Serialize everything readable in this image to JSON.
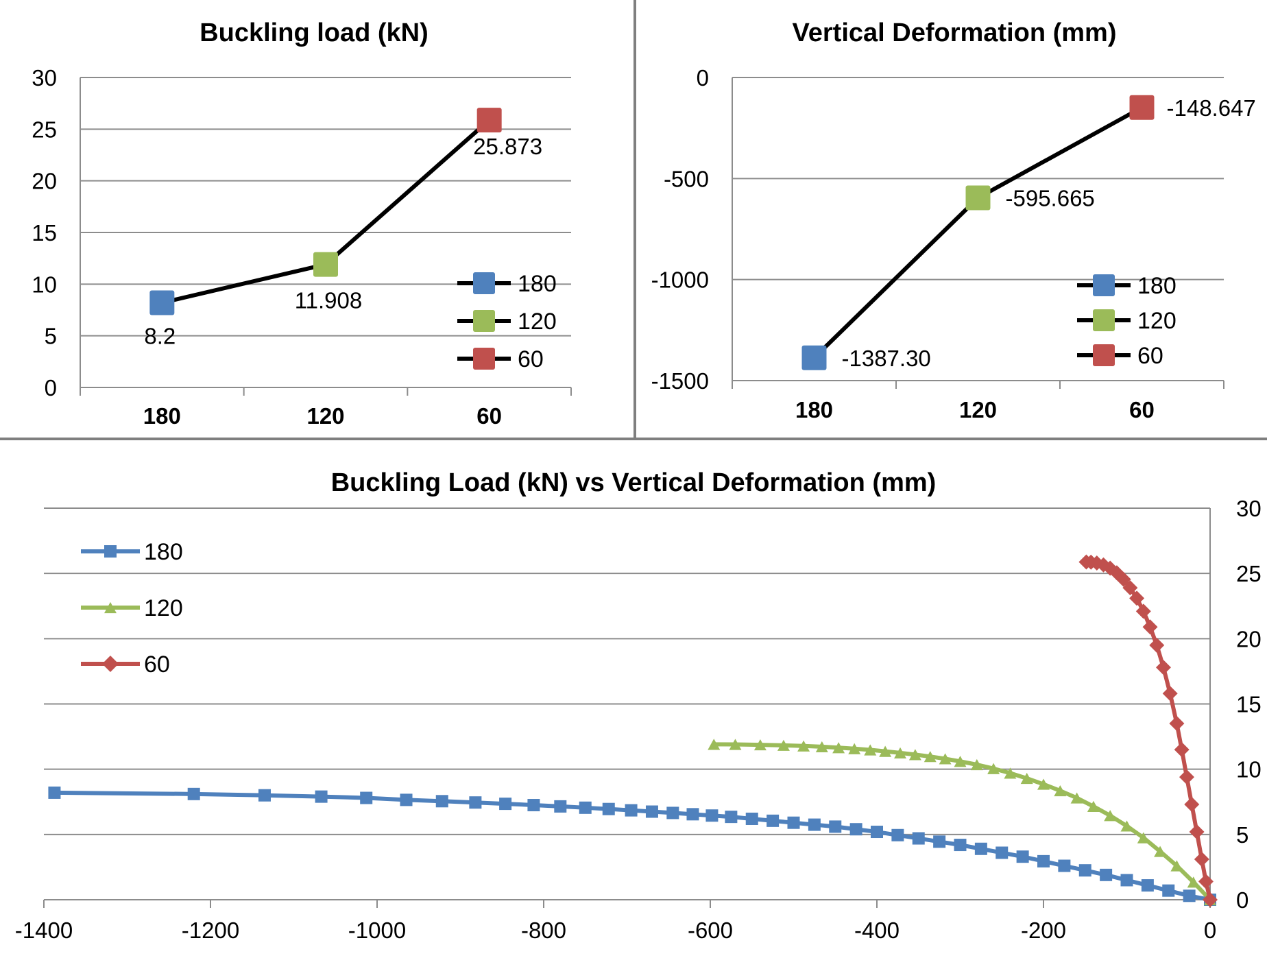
{
  "chart_data": [
    {
      "type": "line",
      "title": "Buckling load (kN)",
      "categories": [
        "180",
        "120",
        "60"
      ],
      "values": [
        8.2,
        11.908,
        25.873
      ],
      "data_labels": [
        "8.2",
        "11.908",
        "25.873"
      ],
      "point_colors": [
        "#4F81BD",
        "#9BBB59",
        "#C0504D"
      ],
      "ylim": [
        0,
        30
      ],
      "yticks": [
        "0",
        "5",
        "10",
        "15",
        "20",
        "25",
        "30"
      ],
      "legend": [
        "180",
        "120",
        "60"
      ],
      "legend_position": "bottom-right",
      "grid": true
    },
    {
      "type": "line",
      "title": "Vertical Deformation (mm)",
      "categories": [
        "180",
        "120",
        "60"
      ],
      "values": [
        -1387.3,
        -595.665,
        -148.647
      ],
      "data_labels": [
        "-1387.30",
        "-595.665",
        "-148.647"
      ],
      "point_colors": [
        "#4F81BD",
        "#9BBB59",
        "#C0504D"
      ],
      "ylim": [
        -1500,
        0
      ],
      "yticks": [
        "0",
        "-500",
        "-1000",
        "-1500"
      ],
      "legend": [
        "180",
        "120",
        "60"
      ],
      "legend_position": "bottom-right",
      "grid": true
    },
    {
      "type": "scatter",
      "title": "Buckling Load (kN) vs Vertical Deformation (mm)",
      "xlim": [
        -1400,
        0
      ],
      "ylim": [
        0,
        30
      ],
      "xticks": [
        "-1400",
        "-1200",
        "-1000",
        "-800",
        "-600",
        "-400",
        "-200",
        "0"
      ],
      "yticks": [
        "0",
        "5",
        "10",
        "15",
        "20",
        "25",
        "30"
      ],
      "y_axis_side": "right",
      "legend_position": "top-left",
      "grid": true,
      "series": [
        {
          "name": "180",
          "color": "#4F81BD",
          "marker": "square",
          "x": [
            -1387.3,
            -1220,
            -1135,
            -1067,
            -1013,
            -965,
            -922,
            -882,
            -846,
            -812,
            -780,
            -750,
            -722,
            -695,
            -670,
            -645,
            -621,
            -598,
            -575,
            -550,
            -525,
            -500,
            -475,
            -450,
            -425,
            -400,
            -375,
            -350,
            -325,
            -300,
            -275,
            -250,
            -225,
            -200,
            -175,
            -150,
            -125,
            -100,
            -75,
            -50,
            -25,
            0
          ],
          "y": [
            8.2,
            8.1,
            8.0,
            7.9,
            7.8,
            7.65,
            7.55,
            7.45,
            7.35,
            7.25,
            7.15,
            7.05,
            6.95,
            6.85,
            6.75,
            6.65,
            6.55,
            6.45,
            6.35,
            6.2,
            6.05,
            5.9,
            5.75,
            5.6,
            5.4,
            5.2,
            4.95,
            4.7,
            4.45,
            4.2,
            3.9,
            3.6,
            3.3,
            2.95,
            2.6,
            2.25,
            1.9,
            1.5,
            1.1,
            0.7,
            0.3,
            0
          ]
        },
        {
          "name": "120",
          "color": "#9BBB59",
          "marker": "triangle",
          "x": [
            -595.665,
            -570,
            -540,
            -512,
            -488,
            -466,
            -446,
            -427,
            -408,
            -390,
            -372,
            -354,
            -336,
            -318,
            -300,
            -280,
            -260,
            -240,
            -220,
            -200,
            -180,
            -160,
            -140,
            -120,
            -100,
            -80,
            -60,
            -40,
            -20,
            0
          ],
          "y": [
            11.908,
            11.9,
            11.87,
            11.83,
            11.78,
            11.72,
            11.65,
            11.57,
            11.48,
            11.37,
            11.25,
            11.12,
            10.97,
            10.8,
            10.6,
            10.35,
            10.05,
            9.7,
            9.3,
            8.85,
            8.35,
            7.8,
            7.15,
            6.45,
            5.65,
            4.75,
            3.7,
            2.6,
            1.35,
            0
          ]
        },
        {
          "name": "60",
          "color": "#C0504D",
          "marker": "diamond",
          "x": [
            -148.647,
            -143,
            -136,
            -128,
            -120,
            -112,
            -104,
            -96,
            -88,
            -80,
            -72,
            -64,
            -56,
            -48,
            -40,
            -34,
            -28,
            -22,
            -16,
            -10,
            -5,
            0
          ],
          "y": [
            25.873,
            25.86,
            25.8,
            25.65,
            25.4,
            25.05,
            24.55,
            23.9,
            23.1,
            22.1,
            20.9,
            19.5,
            17.8,
            15.8,
            13.5,
            11.5,
            9.4,
            7.3,
            5.2,
            3.1,
            1.4,
            0
          ]
        }
      ]
    }
  ]
}
